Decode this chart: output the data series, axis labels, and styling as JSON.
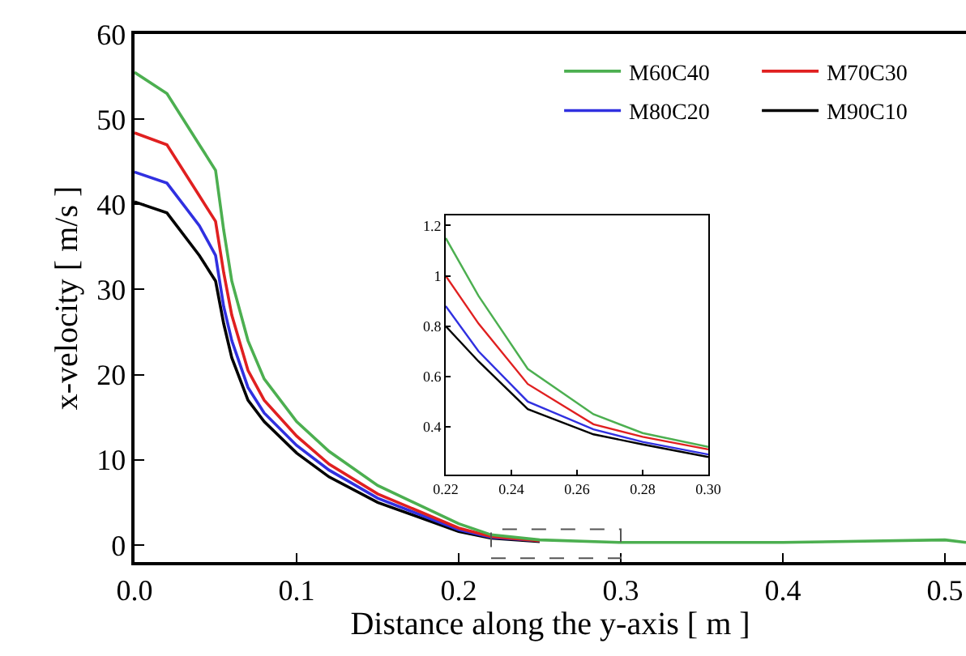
{
  "chart_data": [
    {
      "type": "line",
      "xlabel": "Distance along the y-axis [ m ]",
      "ylabel": "x-velocity [ m/s ]",
      "xlim": [
        0,
        0.513
      ],
      "ylim": [
        -2,
        60
      ],
      "xticks": [
        {
          "value": 0,
          "label": "0.0"
        },
        0.1,
        0.2,
        0.3,
        0.4,
        0.5
      ],
      "yticks": [
        0,
        10,
        20,
        30,
        40,
        50,
        60
      ],
      "legend": "top right",
      "line_style": "solid",
      "marker": "none",
      "x": [
        0,
        0.02,
        0.04,
        0.05,
        0.055,
        0.06,
        0.07,
        0.08,
        0.1,
        0.12,
        0.15,
        0.2,
        0.22,
        0.25,
        0.3,
        0.4,
        0.5,
        0.513
      ],
      "series": [
        {
          "name": "M60C40",
          "color": "#4caf50",
          "values": [
            55.5,
            53,
            47,
            44,
            37,
            31,
            24,
            19.5,
            14.5,
            11,
            7,
            2.5,
            1.2,
            0.6,
            0.3,
            0.3,
            0.6,
            0.3
          ]
        },
        {
          "name": "M70C30",
          "color": "#e02020",
          "values": [
            48.4,
            47,
            41,
            38,
            32,
            27,
            20.5,
            17,
            12.8,
            9.5,
            6,
            2,
            1.0,
            0.5,
            null,
            null,
            null,
            null
          ]
        },
        {
          "name": "M80C20",
          "color": "#3030e0",
          "values": [
            43.8,
            42.5,
            37.5,
            34,
            28,
            24,
            18.5,
            15.5,
            11.7,
            8.8,
            5.5,
            1.8,
            0.9,
            0.5,
            null,
            null,
            null,
            null
          ]
        },
        {
          "name": "M90C10",
          "color": "#000000",
          "values": [
            40.3,
            39,
            34,
            31,
            26,
            22,
            17,
            14.5,
            10.8,
            8,
            5,
            1.6,
            0.8,
            0.4,
            null,
            null,
            null,
            null
          ]
        }
      ]
    },
    {
      "type": "line",
      "xlim": [
        0.22,
        0.3
      ],
      "ylim": [
        0.21,
        1.24
      ],
      "xticks": [
        0.22,
        0.24,
        0.26,
        0.28,
        {
          "value": 0.3,
          "label": "0.30"
        }
      ],
      "yticks": [
        0.4,
        0.6,
        0.8,
        1,
        1.2
      ],
      "line_style": "solid",
      "marker": "none",
      "x": [
        0.22,
        0.23,
        0.245,
        0.265,
        0.28,
        0.3
      ],
      "series": [
        {
          "color": "#4caf50",
          "values": [
            1.15,
            0.92,
            0.63,
            0.45,
            0.375,
            0.32
          ]
        },
        {
          "color": "#e02020",
          "values": [
            1.0,
            0.81,
            0.57,
            0.41,
            0.36,
            0.31
          ]
        },
        {
          "color": "#3030e0",
          "values": [
            0.88,
            0.7,
            0.5,
            0.39,
            0.34,
            0.29
          ]
        },
        {
          "color": "#000000",
          "values": [
            0.8,
            0.66,
            0.47,
            0.37,
            0.33,
            0.28
          ]
        }
      ]
    }
  ]
}
